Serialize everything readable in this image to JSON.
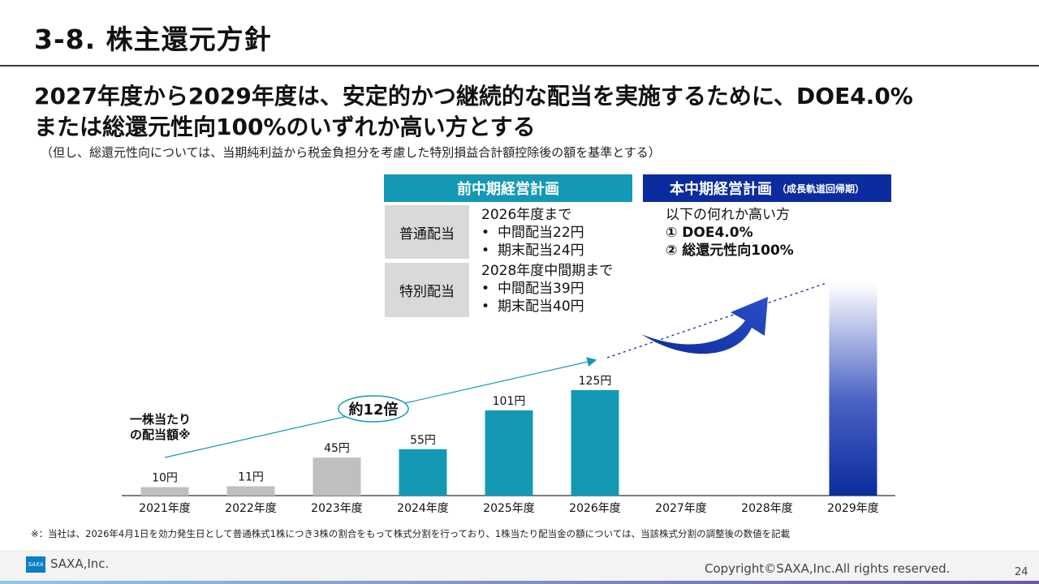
{
  "page": {
    "title": "3-8. 株主還元方針",
    "headline_line1": "2027年度から2029年度は、安定的かつ継続的な配当を実施するために、DOE4.0%",
    "headline_line2": "または総還元性向100%のいずれか高い方とする",
    "subnote": "（但し、総還元性向については、当期純利益から税金負担分を考慮した特別損益合計額控除後の額を基準とする）",
    "footnote": "※：当社は、2026年4月1日を効力発生日として普通株式1株につき3株の割合をもって株式分割を行っており、1株当たり配当金の額については、当該株式分割の調整後の数値を記載"
  },
  "plan_prev": {
    "header": "前中期経営計画",
    "regular_label": "普通配当",
    "regular_until": "2026年度まで",
    "regular_items": [
      "中間配当22円",
      "期末配当24円"
    ],
    "special_label": "特別配当",
    "special_until": "2028年度中間期まで",
    "special_items": [
      "中間配当39円",
      "期末配当40円"
    ],
    "bullet": "•"
  },
  "plan_curr": {
    "header": "本中期経営計画",
    "header_sub": "（成長軌道回帰期）",
    "intro": "以下の何れか高い方",
    "option1": "① DOE4.0%",
    "option2": "② 総還元性向100%"
  },
  "chart_data": {
    "type": "bar",
    "ylabel_line1": "一株当たり",
    "ylabel_line2": "の配当額※",
    "categories": [
      "2021年度",
      "2022年度",
      "2023年度",
      "2024年度",
      "2025年度",
      "2026年度",
      "2027年度",
      "2028年度",
      "2029年度"
    ],
    "values": [
      10,
      11,
      45,
      55,
      101,
      125,
      null,
      null,
      null
    ],
    "value_labels": [
      "10円",
      "11円",
      "45円",
      "55円",
      "101円",
      "125円",
      "",
      "",
      ""
    ],
    "bar_colors": [
      "#bfbfbf",
      "#bfbfbf",
      "#bfbfbf",
      "#1499b5",
      "#1499b5",
      "#1499b5",
      "",
      "",
      "gradient-navy"
    ],
    "ylim": [
      0,
      125
    ],
    "growth_annotation": "約12倍",
    "grid": false,
    "colors": {
      "gray": "#bfbfbf",
      "teal": "#1499b5",
      "navy": "#0b2c9e"
    }
  },
  "footer": {
    "logo_text": "SAXA",
    "company": "SAXA,Inc.",
    "copyright": "Copyright©SAXA,Inc.All rights reserved.",
    "page_number": "24"
  }
}
